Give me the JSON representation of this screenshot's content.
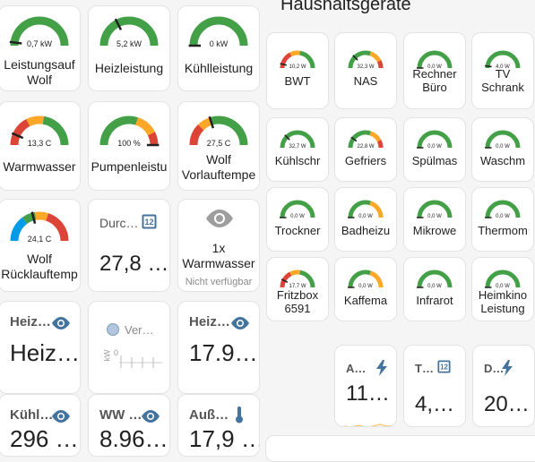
{
  "left_gauges": [
    {
      "id": "leistung",
      "value": "0,7 kW",
      "label1": "Leistungsauf",
      "label2": "Wolf",
      "frac": 0.04,
      "segments": "green"
    },
    {
      "id": "heiz",
      "value": "5,2 kW",
      "label1": "Heizleistung",
      "label2": "",
      "frac": 0.35,
      "segments": "green"
    },
    {
      "id": "kuehl",
      "value": "0 kW",
      "label1": "Kühlleistung",
      "label2": "",
      "frac": 0.0,
      "segments": "green"
    },
    {
      "id": "warmwasser",
      "value": "13,3 C",
      "label1": "Warmwasser",
      "label2": "",
      "frac": 0.13,
      "segments": "rgy"
    },
    {
      "id": "pumpen",
      "value": "100 %",
      "label1": "Pumpenleistu",
      "label2": "",
      "frac": 1.0,
      "segments": "gyr"
    },
    {
      "id": "vorlauf",
      "value": "27,5 C",
      "label1": "Wolf",
      "label2": "Vorlauftempe",
      "frac": 0.4,
      "segments": "ryg"
    },
    {
      "id": "ruecklauf",
      "value": "24,1 C",
      "label1": "Wolf",
      "label2": "Rücklauftemp",
      "frac": 0.42,
      "segments": "bgyr"
    }
  ],
  "durch": {
    "name": "Durc…",
    "value": "27,8 …"
  },
  "warmwasser_card": {
    "title1": "1x",
    "title2": "Warmwasser",
    "status": "Nicht verfügbar"
  },
  "row4": [
    {
      "name": "Heiz…",
      "value": "Heiz…"
    },
    {
      "name": "Ver…",
      "axis": "kW",
      "tick": "0"
    },
    {
      "name": "Heiz…",
      "value": "17.9…"
    }
  ],
  "row5": [
    {
      "name": "Kühl…",
      "value": "296 …"
    },
    {
      "name": "WW …",
      "value": "8.96…"
    },
    {
      "name": "Auß…",
      "value": "17,9 …"
    }
  ],
  "section_title": "Haushaltsgeräte",
  "devices": [
    {
      "id": "bwt",
      "value": "10,2 W",
      "label1": "BWT",
      "label2": "",
      "frac": 0.08,
      "segments": "rgy"
    },
    {
      "id": "nas",
      "value": "32,3 W",
      "label1": "NAS",
      "label2": "",
      "frac": 0.25,
      "segments": "gyr"
    },
    {
      "id": "rechner",
      "value": "0,0 W",
      "label1": "Rechner",
      "label2": "Büro",
      "frac": 0.0,
      "segments": "green"
    },
    {
      "id": "tv",
      "value": "4,0 W",
      "label1": "TV",
      "label2": "Schrank",
      "frac": 0.04,
      "segments": "green"
    },
    {
      "id": "kuehlschrank",
      "value": "32,7 W",
      "label1": "Kühlschr",
      "label2": "",
      "frac": 0.25,
      "segments": "green"
    },
    {
      "id": "gefrier",
      "value": "22,8 W",
      "label1": "Gefriers",
      "label2": "",
      "frac": 0.2,
      "segments": "gyr"
    },
    {
      "id": "spuel",
      "value": "0,0 W",
      "label1": "Spülmas",
      "label2": "",
      "frac": 0.0,
      "segments": "green"
    },
    {
      "id": "waschm",
      "value": "0,0 W",
      "label1": "Waschm",
      "label2": "",
      "frac": 0.0,
      "segments": "green"
    },
    {
      "id": "trockner",
      "value": "0,0 W",
      "label1": "Trockner",
      "label2": "",
      "frac": 0.0,
      "segments": "green"
    },
    {
      "id": "badheiz",
      "value": "0,0 W",
      "label1": "Badheizu",
      "label2": "",
      "frac": 0.0,
      "segments": "gy"
    },
    {
      "id": "mikrowe",
      "value": "0,0 W",
      "label1": "Mikrowe",
      "label2": "",
      "frac": 0.0,
      "segments": "green"
    },
    {
      "id": "thermom",
      "value": "0,0 W",
      "label1": "Thermom",
      "label2": "",
      "frac": 0.0,
      "segments": "green"
    },
    {
      "id": "fritzbox",
      "value": "17,7 W",
      "label1": "Fritzbox",
      "label2": "6591",
      "frac": 0.15,
      "segments": "rgy"
    },
    {
      "id": "kaffema",
      "value": "0,0 W",
      "label1": "Kaffema",
      "label2": "",
      "frac": 0.0,
      "segments": "gy"
    },
    {
      "id": "infrarot",
      "value": "0,0 W",
      "label1": "Infrarot",
      "label2": "",
      "frac": 0.0,
      "segments": "green"
    },
    {
      "id": "heimkino",
      "value": "0,0 W",
      "label1": "Heimkino",
      "label2": "Leistung",
      "frac": 0.0,
      "segments": "green"
    }
  ],
  "bottom_right": [
    {
      "name": "A…",
      "value": "11…",
      "icon": "flash-icon"
    },
    {
      "name": "T…",
      "value": "4,…",
      "icon": "counter-icon"
    },
    {
      "name": "D…",
      "value": "20…",
      "icon": "flash-icon"
    }
  ],
  "colors": {
    "green": "#43a047",
    "yellow": "#ffa726",
    "red": "#db4437",
    "blue": "#039be5",
    "needle": "#212121",
    "track": "#e0e0e0",
    "accent": "#44739e"
  }
}
